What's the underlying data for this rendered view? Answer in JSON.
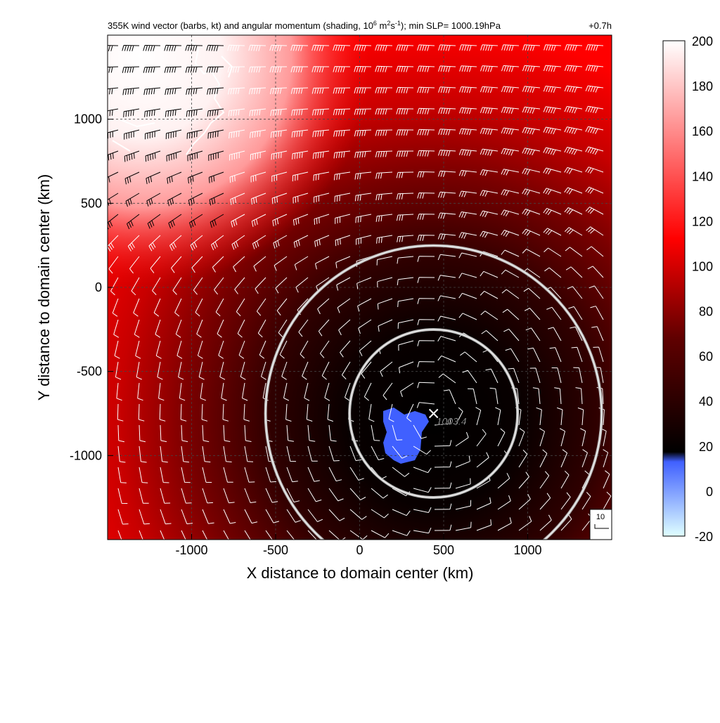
{
  "title": {
    "prefix": "355K wind vector (barbs, kt) and angular momentum (shading, 10",
    "exp1": "6",
    "mid1": " m",
    "exp2": "2",
    "mid2": "s",
    "exp3": "-1",
    "suffix": "); min SLP= 1000.19hPa",
    "time": "+0.7h"
  },
  "chart_data": {
    "type": "heatmap",
    "xlabel": "X distance to domain center (km)",
    "ylabel": "Y distance to domain center (km)",
    "xlim": [
      -1500,
      1500
    ],
    "ylim": [
      -1500,
      1500
    ],
    "xticks": [
      -1000,
      -500,
      0,
      500,
      1000
    ],
    "yticks": [
      -1000,
      -500,
      0,
      500,
      1000
    ],
    "grid": true,
    "colorbar": {
      "ticks": [
        200,
        180,
        160,
        140,
        120,
        100,
        80,
        60,
        40,
        20,
        0,
        -20
      ],
      "range": [
        -20,
        200
      ]
    },
    "storm_center": {
      "x": 440,
      "y": -750,
      "label": "1003.4"
    },
    "rings": [
      {
        "center_x": 440,
        "center_y": -750,
        "radius_km": 500
      },
      {
        "center_x": 440,
        "center_y": -750,
        "radius_km": 1000
      }
    ],
    "reference_barb": {
      "label": "10"
    },
    "colors": {
      "white": "#ffffff",
      "red": "#ff0000",
      "dark_red": "#600000",
      "black": "#000000",
      "blue": "#4060ff",
      "cyan": "#00ffff"
    }
  }
}
